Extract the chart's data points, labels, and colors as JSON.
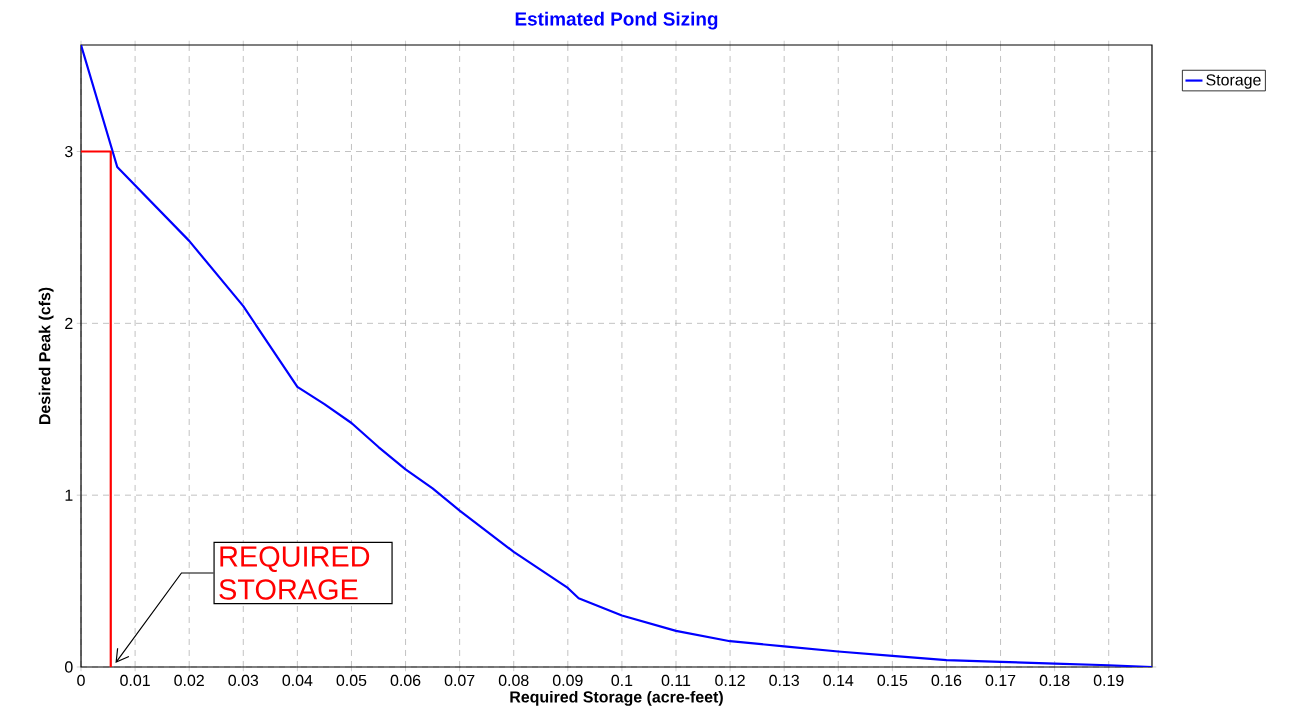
{
  "chart_data": {
    "type": "line",
    "title": "Estimated Pond Sizing",
    "xlabel": "Required Storage  (acre-feet)",
    "ylabel": "Desired Peak  (cfs)",
    "xlim": [
      0,
      0.198
    ],
    "ylim": [
      0,
      3.62
    ],
    "xticks": [
      0,
      0.01,
      0.02,
      0.03,
      0.04,
      0.05,
      0.06,
      0.07,
      0.08,
      0.09,
      0.1,
      0.11,
      0.12,
      0.13,
      0.14,
      0.15,
      0.16,
      0.17,
      0.18,
      0.19
    ],
    "yticks": [
      0,
      1,
      2,
      3
    ],
    "grid": true,
    "legend": "top right",
    "line_style": "solid",
    "marker": "none",
    "series": [
      {
        "name": "Storage",
        "color": "#0000ff",
        "x": [
          0,
          0.0067,
          0.02,
          0.03,
          0.04,
          0.045,
          0.05,
          0.055,
          0.06,
          0.065,
          0.07,
          0.08,
          0.09,
          0.092,
          0.1,
          0.11,
          0.12,
          0.13,
          0.14,
          0.15,
          0.16,
          0.17,
          0.18,
          0.19,
          0.198
        ],
        "values": [
          3.62,
          2.91,
          2.48,
          2.1,
          1.63,
          1.53,
          1.42,
          1.28,
          1.15,
          1.04,
          0.91,
          0.67,
          0.46,
          0.4,
          0.3,
          0.21,
          0.15,
          0.12,
          0.09,
          0.065,
          0.04,
          0.03,
          0.02,
          0.01,
          0
        ]
      },
      {
        "color": "#ff0000",
        "x": [
          0,
          0.0055,
          0.0055
        ],
        "values": [
          3,
          3,
          0
        ]
      }
    ],
    "annotations": [
      {
        "text": "REQUIRED STORAGE",
        "x": 0.006,
        "y": 0
      }
    ]
  }
}
